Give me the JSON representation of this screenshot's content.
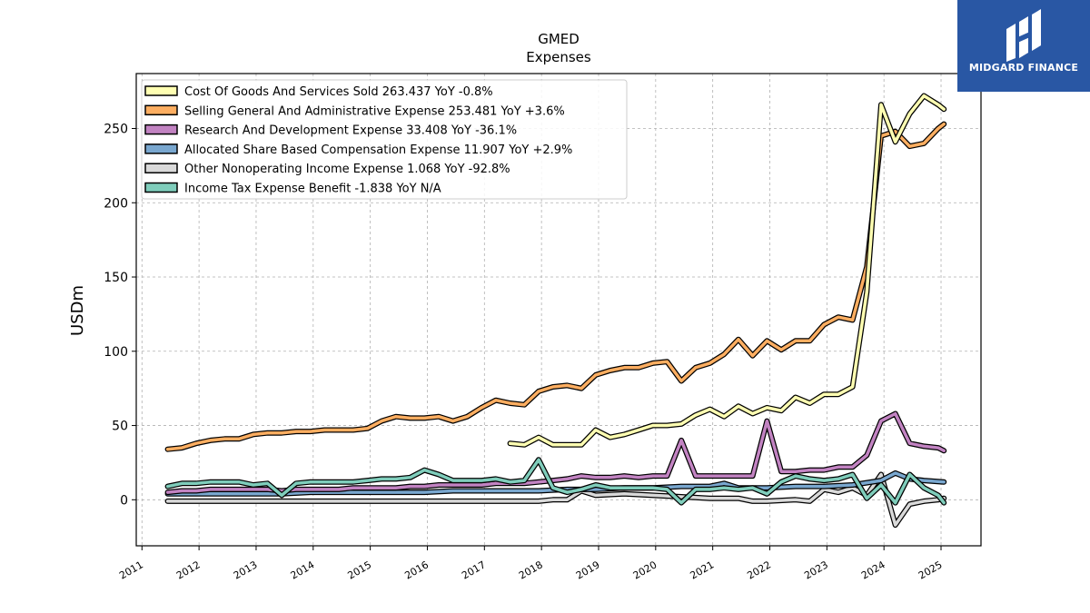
{
  "brand": {
    "name": "MIDGARD FINANCE",
    "background": "#2957a4"
  },
  "chart_data": {
    "type": "line",
    "title": "GMED",
    "subtitle": "Expenses",
    "xlabel": "",
    "ylabel": "USDm",
    "xlim": [
      2010.9,
      2025.7
    ],
    "ylim": [
      -31,
      287
    ],
    "grid": true,
    "legend_position": "top-left",
    "x_ticks": [
      "2011",
      "2012",
      "2013",
      "2014",
      "2015",
      "2016",
      "2017",
      "2018",
      "2019",
      "2020",
      "2021",
      "2022",
      "2023",
      "2024",
      "2025"
    ],
    "y_ticks": [
      0,
      50,
      100,
      150,
      200,
      250
    ],
    "series": [
      {
        "name": "Cost Of Goods And Services Sold",
        "legend": "Cost Of Goods And Services Sold  263.437 YoY -0.8%",
        "color": "#ffffb2",
        "x": [
          2017.45,
          2017.7,
          2017.95,
          2018.2,
          2018.45,
          2018.7,
          2018.95,
          2019.2,
          2019.45,
          2019.7,
          2019.95,
          2020.2,
          2020.45,
          2020.7,
          2020.95,
          2021.2,
          2021.45,
          2021.7,
          2021.95,
          2022.2,
          2022.45,
          2022.7,
          2022.95,
          2023.2,
          2023.45,
          2023.7,
          2023.95,
          2024.2,
          2024.45,
          2024.7,
          2024.95,
          2025.05
        ],
        "values": [
          38,
          37,
          42,
          37,
          37,
          37,
          47,
          42,
          44,
          47,
          50,
          50,
          51,
          57,
          61,
          56,
          63,
          58,
          62,
          60,
          69,
          65,
          71,
          71,
          76,
          140,
          266,
          241,
          260,
          272,
          266,
          263
        ]
      },
      {
        "name": "Selling General And Administrative Expense",
        "legend": "Selling General And Administrative Expense  253.481 YoY +3.6%",
        "color": "#fdae61",
        "x": [
          2011.45,
          2011.7,
          2011.95,
          2012.2,
          2012.45,
          2012.7,
          2012.95,
          2013.2,
          2013.45,
          2013.7,
          2013.95,
          2014.2,
          2014.45,
          2014.7,
          2014.95,
          2015.2,
          2015.45,
          2015.7,
          2015.95,
          2016.2,
          2016.45,
          2016.7,
          2016.95,
          2017.2,
          2017.45,
          2017.7,
          2017.95,
          2018.2,
          2018.45,
          2018.7,
          2018.95,
          2019.2,
          2019.45,
          2019.7,
          2019.95,
          2020.2,
          2020.45,
          2020.7,
          2020.95,
          2021.2,
          2021.45,
          2021.7,
          2021.95,
          2022.2,
          2022.45,
          2022.7,
          2022.95,
          2023.2,
          2023.45,
          2023.7,
          2023.95,
          2024.2,
          2024.45,
          2024.7,
          2024.95,
          2025.05
        ],
        "values": [
          34,
          35,
          38,
          40,
          41,
          41,
          44,
          45,
          45,
          46,
          46,
          47,
          47,
          47,
          48,
          53,
          56,
          55,
          55,
          56,
          53,
          56,
          62,
          67,
          65,
          64,
          73,
          76,
          77,
          75,
          84,
          87,
          89,
          89,
          92,
          93,
          80,
          89,
          92,
          98,
          108,
          97,
          107,
          101,
          107,
          107,
          118,
          123,
          121,
          157,
          245,
          248,
          238,
          240,
          250,
          253
        ]
      },
      {
        "name": "Research And Development Expense",
        "legend": "Research And Development Expense  33.408 YoY -36.1%",
        "color": "#c283c2",
        "x": [
          2011.45,
          2011.7,
          2011.95,
          2012.2,
          2012.45,
          2012.7,
          2012.95,
          2013.2,
          2013.45,
          2013.7,
          2013.95,
          2014.2,
          2014.45,
          2014.7,
          2014.95,
          2015.2,
          2015.45,
          2015.7,
          2015.95,
          2016.2,
          2016.45,
          2016.7,
          2016.95,
          2017.2,
          2017.45,
          2017.7,
          2017.95,
          2018.2,
          2018.45,
          2018.7,
          2018.95,
          2019.2,
          2019.45,
          2019.7,
          2019.95,
          2020.2,
          2020.45,
          2020.7,
          2020.95,
          2021.2,
          2021.45,
          2021.7,
          2021.95,
          2022.2,
          2022.45,
          2022.7,
          2022.95,
          2023.2,
          2023.45,
          2023.7,
          2023.95,
          2024.2,
          2024.45,
          2024.7,
          2024.95,
          2025.05
        ],
        "values": [
          5,
          6,
          6,
          7,
          7,
          7,
          7,
          7,
          6,
          7,
          7,
          7,
          7,
          8,
          8,
          8,
          8,
          9,
          9,
          10,
          10,
          10,
          10,
          11,
          11,
          11,
          12,
          13,
          14,
          16,
          15,
          15,
          16,
          15,
          16,
          16,
          40,
          16,
          16,
          16,
          16,
          16,
          53,
          19,
          19,
          20,
          20,
          22,
          22,
          30,
          53,
          58,
          38,
          36,
          35,
          33
        ]
      },
      {
        "name": "Allocated Share Based Compensation Expense",
        "legend": "Allocated Share Based Compensation Expense  11.907 YoY +2.9%",
        "color": "#79a7cf",
        "x": [
          2011.45,
          2011.95,
          2012.45,
          2012.95,
          2013.45,
          2013.95,
          2014.45,
          2014.95,
          2015.45,
          2015.95,
          2016.45,
          2016.95,
          2017.45,
          2017.95,
          2018.45,
          2018.95,
          2019.45,
          2019.95,
          2020.45,
          2020.95,
          2021.2,
          2021.45,
          2021.95,
          2022.45,
          2022.95,
          2023.45,
          2023.95,
          2024.2,
          2024.45,
          2024.7,
          2025.05
        ],
        "values": [
          4,
          4,
          4,
          4,
          4,
          5,
          5,
          5,
          5,
          5,
          6,
          6,
          6,
          6,
          7,
          7,
          8,
          8,
          9,
          9,
          11,
          8,
          8,
          9,
          9,
          10,
          13,
          18,
          14,
          13,
          12
        ]
      },
      {
        "name": "Other Nonoperating Income Expense",
        "legend": "Other Nonoperating Income Expense  1.068 YoY -92.8%",
        "color": "#d9d9d9",
        "x": [
          2011.45,
          2011.95,
          2012.45,
          2012.95,
          2013.45,
          2013.95,
          2014.45,
          2014.95,
          2015.45,
          2015.95,
          2016.45,
          2016.95,
          2017.45,
          2017.95,
          2018.2,
          2018.45,
          2018.7,
          2018.95,
          2019.45,
          2019.95,
          2020.45,
          2020.95,
          2021.45,
          2021.7,
          2021.95,
          2022.45,
          2022.7,
          2022.95,
          2023.2,
          2023.45,
          2023.7,
          2023.95,
          2024.2,
          2024.45,
          2024.7,
          2024.95,
          2025.05
        ],
        "values": [
          -1,
          -1,
          -1,
          -1,
          -1,
          -1,
          -1,
          -1,
          -1,
          -1,
          -1,
          -1,
          -1,
          -1,
          0,
          0,
          6,
          3,
          4,
          3,
          2,
          1,
          1,
          -1,
          -1,
          0,
          -1,
          7,
          5,
          8,
          3,
          17,
          -17,
          -3,
          -1,
          0,
          1
        ]
      },
      {
        "name": "Income Tax Expense Benefit",
        "legend": "Income Tax Expense Benefit  -1.838 YoY N/A",
        "color": "#7fcdbb",
        "x": [
          2011.45,
          2011.7,
          2011.95,
          2012.2,
          2012.45,
          2012.7,
          2012.95,
          2013.2,
          2013.45,
          2013.7,
          2013.95,
          2014.2,
          2014.45,
          2014.7,
          2014.95,
          2015.2,
          2015.45,
          2015.7,
          2015.95,
          2016.2,
          2016.45,
          2016.7,
          2016.95,
          2017.2,
          2017.45,
          2017.7,
          2017.95,
          2018.2,
          2018.45,
          2018.7,
          2018.95,
          2019.2,
          2019.45,
          2019.7,
          2019.95,
          2020.2,
          2020.45,
          2020.7,
          2020.95,
          2021.2,
          2021.45,
          2021.7,
          2021.95,
          2022.2,
          2022.45,
          2022.7,
          2022.95,
          2023.2,
          2023.45,
          2023.7,
          2023.95,
          2024.2,
          2024.45,
          2024.7,
          2024.95,
          2025.05
        ],
        "values": [
          9,
          11,
          11,
          12,
          12,
          12,
          10,
          11,
          3,
          11,
          12,
          12,
          12,
          12,
          13,
          14,
          14,
          15,
          20,
          17,
          13,
          13,
          13,
          14,
          12,
          13,
          27,
          8,
          5,
          7,
          10,
          8,
          8,
          8,
          8,
          7,
          -2,
          7,
          7,
          8,
          7,
          8,
          4,
          12,
          16,
          14,
          13,
          14,
          17,
          1,
          10,
          -2,
          17,
          8,
          3,
          -2
        ]
      }
    ]
  }
}
